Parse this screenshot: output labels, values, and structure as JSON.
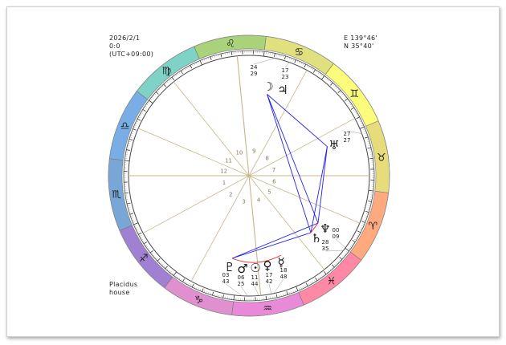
{
  "datetime": {
    "date": "2026/2/1",
    "time": "0:0",
    "timezone": "(UTC+09:00)"
  },
  "location": {
    "longitude": "E 139°46'",
    "latitude": "N 35°40'"
  },
  "house_system": {
    "line1": "Placidus",
    "line2": "house"
  },
  "ascendant_longitude": 217,
  "signs": [
    {
      "name": "Aries",
      "glyph": "♈︎",
      "color": "#ffa97e"
    },
    {
      "name": "Taurus",
      "glyph": "♉︎",
      "color": "#e6dc7c"
    },
    {
      "name": "Gemini",
      "glyph": "♊︎",
      "color": "#fbfb7c"
    },
    {
      "name": "Cancer",
      "glyph": "♋︎",
      "color": "#e0e07e"
    },
    {
      "name": "Leo",
      "glyph": "♌︎",
      "color": "#a9d27a"
    },
    {
      "name": "Virgo",
      "glyph": "♍︎",
      "color": "#7fd2c6"
    },
    {
      "name": "Libra",
      "glyph": "♎︎",
      "color": "#79ade6"
    },
    {
      "name": "Scorpio",
      "glyph": "♏︎",
      "color": "#78a6d6"
    },
    {
      "name": "Sagittarius",
      "glyph": "♐︎",
      "color": "#a080d2"
    },
    {
      "name": "Capricorn",
      "glyph": "♑︎",
      "color": "#e08fcf"
    },
    {
      "name": "Aquarius",
      "glyph": "♒︎",
      "color": "#e98ad8"
    },
    {
      "name": "Pisces",
      "glyph": "♓︎",
      "color": "#ff88a6"
    }
  ],
  "house_cusps": [
    217,
    245.5,
    278.3,
    312.6,
    345.7,
    13.8,
    37,
    65.5,
    98.3,
    132.6,
    165.7,
    193.8
  ],
  "house_labels": [
    "1",
    "2",
    "3",
    "4",
    "5",
    "6",
    "7",
    "8",
    "9",
    "10",
    "11",
    "12"
  ],
  "planets": [
    {
      "name": "Moon",
      "glyph": "☽",
      "sign": "Cancer",
      "deg": "24",
      "min": "29",
      "longitude": 114.48
    },
    {
      "name": "Jupiter",
      "glyph": "♃",
      "sign": "Cancer",
      "deg": "17",
      "min": "23",
      "longitude": 107.38
    },
    {
      "name": "Uranus",
      "glyph": "♅",
      "sign": "Taurus",
      "deg": "27",
      "min": "27",
      "longitude": 57.45
    },
    {
      "name": "Neptune",
      "glyph": "♆",
      "sign": "Aries",
      "deg": "00",
      "min": "09",
      "longitude": 0.15
    },
    {
      "name": "Saturn",
      "glyph": "♄",
      "sign": "Pisces",
      "deg": "28",
      "min": "35",
      "longitude": 358.58
    },
    {
      "name": "Pluto",
      "glyph": "♇",
      "sign": "Aquarius",
      "deg": "03",
      "min": "43",
      "longitude": 303.72
    },
    {
      "name": "Mars",
      "glyph": "♂",
      "sign": "Aquarius",
      "deg": "06",
      "min": "25",
      "longitude": 306.42
    },
    {
      "name": "Sun",
      "glyph": "☉",
      "sign": "Aquarius",
      "deg": "11",
      "min": "44",
      "longitude": 311.73
    },
    {
      "name": "Venus",
      "glyph": "♀",
      "sign": "Aquarius",
      "deg": "17",
      "min": "42",
      "longitude": 317.7
    },
    {
      "name": "Mercury",
      "glyph": "☿",
      "sign": "Aquarius",
      "deg": "18",
      "min": "48",
      "longitude": 318.8
    }
  ],
  "aspects": [
    {
      "from": "Moon",
      "to": "Uranus",
      "color": "#2222ee"
    },
    {
      "from": "Moon",
      "to": "Neptune",
      "color": "#2222ee"
    },
    {
      "from": "Moon",
      "to": "Saturn",
      "color": "#2222ee"
    },
    {
      "from": "Uranus",
      "to": "Neptune",
      "color": "#2222ee"
    },
    {
      "from": "Uranus",
      "to": "Saturn",
      "color": "#2222ee"
    },
    {
      "from": "Pluto",
      "to": "Neptune",
      "color": "#2222ee"
    },
    {
      "from": "Pluto",
      "to": "Saturn",
      "color": "#2222ee"
    },
    {
      "from": "Neptune",
      "to": "Saturn",
      "color": "#ee2222"
    },
    {
      "from": "Pluto",
      "to": "Mercury",
      "color": "#ee2222"
    }
  ],
  "colors": {
    "house_line": "#c8b48c",
    "house_label": "#8a7a55",
    "ring": "#444444"
  }
}
